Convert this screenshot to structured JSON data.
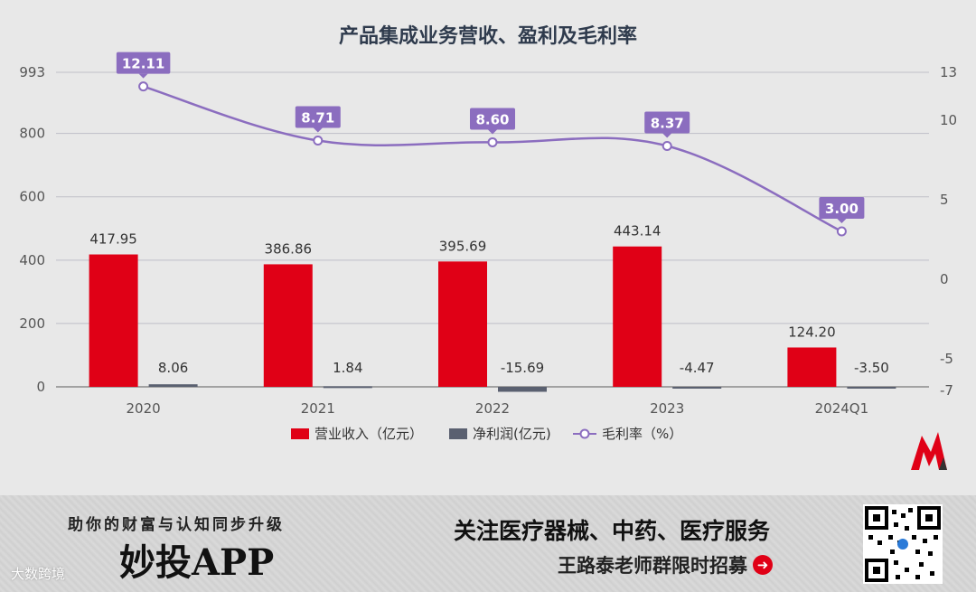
{
  "chart_data": {
    "type": "bar+line",
    "title": "产品集成业务营收、盈利及毛利率",
    "categories": [
      "2020",
      "2021",
      "2022",
      "2023",
      "2024Q1"
    ],
    "series": [
      {
        "name": "营业收入（亿元）",
        "type": "bar",
        "axis": "left",
        "color": "#e00016",
        "values": [
          417.95,
          386.86,
          395.69,
          443.14,
          124.2
        ],
        "labels": [
          "417.95",
          "386.86",
          "395.69",
          "443.14",
          "124.20"
        ]
      },
      {
        "name": "净利润(亿元)",
        "type": "bar",
        "axis": "left",
        "color": "#5a6070",
        "values": [
          8.06,
          1.84,
          -15.69,
          -4.47,
          -3.5
        ],
        "labels": [
          "8.06",
          "1.84",
          "-15.69",
          "-4.47",
          "-3.50"
        ]
      },
      {
        "name": "毛利率（%）",
        "type": "line",
        "axis": "right",
        "color": "#8b6dbf",
        "values": [
          12.11,
          8.71,
          8.6,
          8.37,
          3.0
        ],
        "labels": [
          "12.11",
          "8.71",
          "8.60",
          "8.37",
          "3.00"
        ]
      }
    ],
    "left_axis": {
      "ticks": [
        "993",
        "800",
        "600",
        "400",
        "200",
        "0"
      ],
      "tick_values": [
        993,
        800,
        600,
        400,
        200,
        0
      ]
    },
    "right_axis": {
      "ticks": [
        "13",
        "10",
        "5",
        "0",
        "-5",
        "-7"
      ],
      "tick_values": [
        13,
        10,
        5,
        0,
        -5,
        -7
      ]
    },
    "legend_position": "bottom",
    "grid": true
  },
  "banner": {
    "slogan": "助你的财富与认知同步升级",
    "app_name": "妙投APP",
    "source": "大数跨境",
    "follow_text": "关注医疗器械、中药、医疗服务",
    "recruit_text": "王路泰老师群限时招募"
  },
  "colors": {
    "revenue": "#e00016",
    "profit": "#5a6070",
    "margin": "#8b6dbf",
    "logo_red": "#e00016"
  },
  "icons": {
    "logo": "m-logo-icon",
    "arrow": "arrow-right-icon",
    "qr": "qr-code-icon"
  }
}
